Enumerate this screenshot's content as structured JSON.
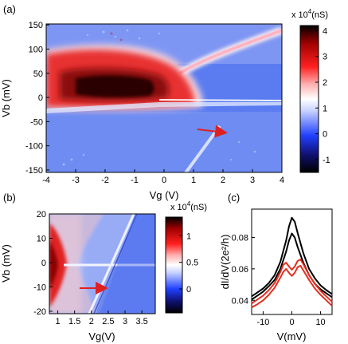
{
  "panels": {
    "a": {
      "label": "(a)"
    },
    "b": {
      "label": "(b)"
    },
    "c": {
      "label": "(c)"
    }
  },
  "colorbars": {
    "a": {
      "scale": "x 10",
      "exp": "4",
      "unit": "(nS)",
      "ticks": [
        "4",
        "3",
        "2",
        "1",
        "0",
        "-1"
      ],
      "range": [
        -1.5,
        4.2
      ]
    },
    "b": {
      "scale": "x 10",
      "exp": "4",
      "unit": "(nS)",
      "ticks": [
        "1",
        "0.5",
        "0"
      ],
      "range": [
        -0.45,
        1.35
      ]
    }
  },
  "colors": {
    "arrow": "#e02020",
    "cmap_low": "#000000",
    "cmap_mid": "#ffffff",
    "cmap_high": "#000000",
    "red": "#e03020"
  },
  "chart_data": [
    {
      "panel": "a",
      "type": "heatmap",
      "xlabel": "Vg (V)",
      "ylabel": "Vb (mV)",
      "xlim": [
        -4,
        4
      ],
      "ylim": [
        -155,
        152
      ],
      "xticks": [
        "-4",
        "-3",
        "-2",
        "-1",
        "0",
        "1",
        "2",
        "3",
        "4"
      ],
      "yticks": [
        "150",
        "100",
        "50",
        "0",
        "-50",
        "-100",
        "-150"
      ],
      "z_range_nS": [
        -15000,
        42000
      ],
      "annotation": {
        "type": "arrow",
        "from": [
          1.3,
          -60
        ],
        "to": [
          2.1,
          -68
        ]
      }
    },
    {
      "panel": "b",
      "type": "heatmap",
      "xlabel": "Vg(V)",
      "ylabel": "Vb (mV)",
      "xlim": [
        0.75,
        3.9
      ],
      "ylim": [
        -21,
        20
      ],
      "xticks": [
        "1",
        "1.5",
        "2",
        "2.5",
        "3",
        "3.5"
      ],
      "yticks": [
        "20",
        "10",
        "0",
        "-10",
        "-20"
      ],
      "z_range_nS": [
        -4500,
        13500
      ],
      "annotation": {
        "type": "arrow",
        "from": [
          1.95,
          -6.5
        ],
        "to": [
          2.5,
          -6.5
        ]
      }
    },
    {
      "panel": "c",
      "type": "line",
      "xlabel": "V(mV)",
      "ylabel": "dI/dV(2e²/h)",
      "xlim": [
        -14,
        14
      ],
      "ylim": [
        0.031,
        0.098
      ],
      "xticks": [
        "-10",
        "0",
        "10"
      ],
      "yticks": [
        "0.08",
        "0.06",
        "0.04"
      ],
      "series": [
        {
          "color": "#000000",
          "x": [
            -14,
            -12,
            -10,
            -8,
            -6,
            -4,
            -2,
            -1,
            0,
            1,
            2,
            4,
            6,
            8,
            10,
            12,
            14
          ],
          "y": [
            0.0425,
            0.045,
            0.0475,
            0.051,
            0.056,
            0.0645,
            0.078,
            0.087,
            0.0925,
            0.09,
            0.083,
            0.07,
            0.06,
            0.054,
            0.0495,
            0.0465,
            0.044
          ]
        },
        {
          "color": "#000000",
          "x": [
            -14,
            -12,
            -10,
            -8,
            -6,
            -4,
            -2,
            -1,
            0,
            1,
            2,
            4,
            6,
            8,
            10,
            12,
            14
          ],
          "y": [
            0.0405,
            0.043,
            0.0455,
            0.049,
            0.053,
            0.06,
            0.071,
            0.078,
            0.0825,
            0.08,
            0.074,
            0.064,
            0.056,
            0.0505,
            0.047,
            0.0445,
            0.042
          ]
        },
        {
          "color": "#e03020",
          "x": [
            -14,
            -12,
            -10,
            -8,
            -6,
            -4,
            -3,
            -2,
            -1,
            0,
            1,
            2,
            3,
            4,
            6,
            8,
            10,
            12,
            14
          ],
          "y": [
            0.038,
            0.0405,
            0.043,
            0.0465,
            0.051,
            0.058,
            0.0625,
            0.064,
            0.0615,
            0.0595,
            0.0615,
            0.065,
            0.066,
            0.063,
            0.056,
            0.0505,
            0.046,
            0.0425,
            0.039
          ]
        },
        {
          "color": "#e03020",
          "x": [
            -14,
            -12,
            -10,
            -8,
            -6,
            -4,
            -3,
            -2,
            -1,
            0,
            1,
            2,
            3,
            4,
            6,
            8,
            10,
            12,
            14
          ],
          "y": [
            0.0355,
            0.0375,
            0.04,
            0.0435,
            0.048,
            0.0545,
            0.058,
            0.06,
            0.0575,
            0.0555,
            0.0575,
            0.061,
            0.062,
            0.059,
            0.053,
            0.0475,
            0.0435,
            0.04,
            0.0365
          ]
        }
      ]
    }
  ]
}
